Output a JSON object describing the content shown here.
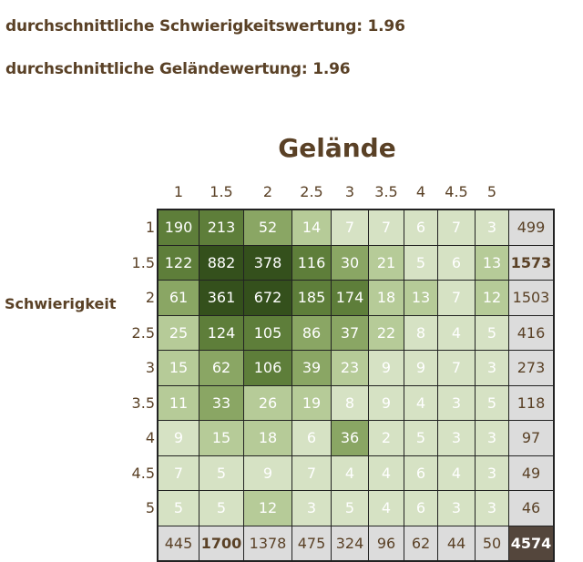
{
  "stats": {
    "difficulty_avg": "durchschnittliche Schwierigkeitswertung: 1.96",
    "terrain_avg": "durchschnittliche Geländewertung: 1.96"
  },
  "matrix": {
    "title": "Gelände",
    "row_label": "Schwierigkeit",
    "column_headers": [
      "1",
      "1.5",
      "2",
      "2.5",
      "3",
      "3.5",
      "4",
      "4.5",
      "5"
    ],
    "row_headers": [
      "1",
      "1.5",
      "2",
      "2.5",
      "3",
      "3.5",
      "4",
      "4.5",
      "5"
    ],
    "rows": [
      {
        "cells": [
          "190",
          "213",
          "52",
          "14",
          "7",
          "7",
          "6",
          "7",
          "3"
        ],
        "total": "499"
      },
      {
        "cells": [
          "122",
          "882",
          "378",
          "116",
          "30",
          "21",
          "5",
          "6",
          "13"
        ],
        "total": "1573"
      },
      {
        "cells": [
          "61",
          "361",
          "672",
          "185",
          "174",
          "18",
          "13",
          "7",
          "12"
        ],
        "total": "1503"
      },
      {
        "cells": [
          "25",
          "124",
          "105",
          "86",
          "37",
          "22",
          "8",
          "4",
          "5"
        ],
        "total": "416"
      },
      {
        "cells": [
          "15",
          "62",
          "106",
          "39",
          "23",
          "9",
          "9",
          "7",
          "3"
        ],
        "total": "273"
      },
      {
        "cells": [
          "11",
          "33",
          "26",
          "19",
          "8",
          "9",
          "4",
          "3",
          "5"
        ],
        "total": "118"
      },
      {
        "cells": [
          "9",
          "15",
          "18",
          "6",
          "36",
          "2",
          "5",
          "3",
          "3"
        ],
        "total": "97"
      },
      {
        "cells": [
          "7",
          "5",
          "9",
          "7",
          "4",
          "4",
          "6",
          "4",
          "3"
        ],
        "total": "49"
      },
      {
        "cells": [
          "5",
          "5",
          "12",
          "3",
          "5",
          "4",
          "6",
          "3",
          "3"
        ],
        "total": "46"
      }
    ],
    "column_totals": [
      "445",
      "1700",
      "1378",
      "475",
      "324",
      "96",
      "62",
      "44",
      "50"
    ],
    "grand_total": "4574",
    "max_row_total": "1573",
    "max_column_total": "1700",
    "colors": {
      "level1": "#d6e2c4",
      "level2": "#b6cb98",
      "level3": "#8aa664",
      "level4": "#5e7e3a",
      "level5": "#34501c",
      "totals": "#dcdcdc",
      "grand_total": "#54463c",
      "text": "#5a4126"
    }
  }
}
